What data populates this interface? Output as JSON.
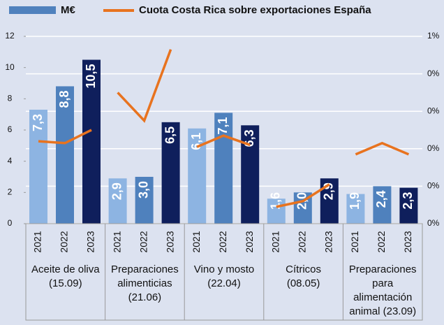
{
  "chart_data": {
    "type": "bar_line",
    "categories": [
      "2021",
      "2022",
      "2023",
      "2021",
      "2022",
      "2023",
      "2021",
      "2022",
      "2023",
      "2021",
      "2022",
      "2023",
      "2021",
      "2022",
      "2023"
    ],
    "groups": [
      [
        "Aceite de oliva",
        "(15.09)"
      ],
      [
        "Preparaciones",
        "alimenticias",
        "(21.06)"
      ],
      [
        "Vino y mosto",
        "(22.04)"
      ],
      [
        "Cítricos",
        "(08.05)"
      ],
      [
        "Preparaciones",
        "para",
        "alimentación",
        "animal  (23.09)"
      ]
    ],
    "series": [
      {
        "name": "M€",
        "type": "bar",
        "color": "#4f81bd",
        "year_colors": [
          "#8db4e2",
          "#4f81bd",
          "#0f1f5c"
        ],
        "values": [
          7.3,
          8.8,
          10.5,
          2.9,
          3.0,
          6.5,
          6.1,
          7.1,
          6.3,
          1.6,
          2.0,
          2.9,
          1.9,
          2.4,
          2.3
        ],
        "value_labels": [
          "7,3",
          "8,8",
          "10,5",
          "2,9",
          "3,0",
          "6,5",
          "6,1",
          "7,1",
          "6,3",
          "1,6",
          "2,0",
          "2,9",
          "1,9",
          "2,4",
          "2,3"
        ]
      },
      {
        "name": "Cuota Costa Rica sobre exportaciones España",
        "type": "line",
        "axis": "y2",
        "color": "#e8731f",
        "values": [
          0.44,
          0.43,
          0.5,
          0.7,
          0.55,
          0.93,
          0.41,
          0.47,
          0.42,
          0.09,
          0.12,
          0.21,
          0.37,
          0.43,
          0.37
        ]
      }
    ],
    "ylim": [
      0,
      12
    ],
    "yticks": [
      0,
      2,
      4,
      6,
      8,
      10,
      12
    ],
    "y2lim": [
      0,
      1
    ],
    "y2ticks": [
      {
        "value": 0,
        "label": "0%"
      },
      {
        "value": 0.2,
        "label": "0%"
      },
      {
        "value": 0.4,
        "label": "0%"
      },
      {
        "value": 0.6,
        "label": "0%"
      },
      {
        "value": 0.8,
        "label": "0%"
      },
      {
        "value": 1,
        "label": "1%"
      }
    ],
    "grid": true
  }
}
